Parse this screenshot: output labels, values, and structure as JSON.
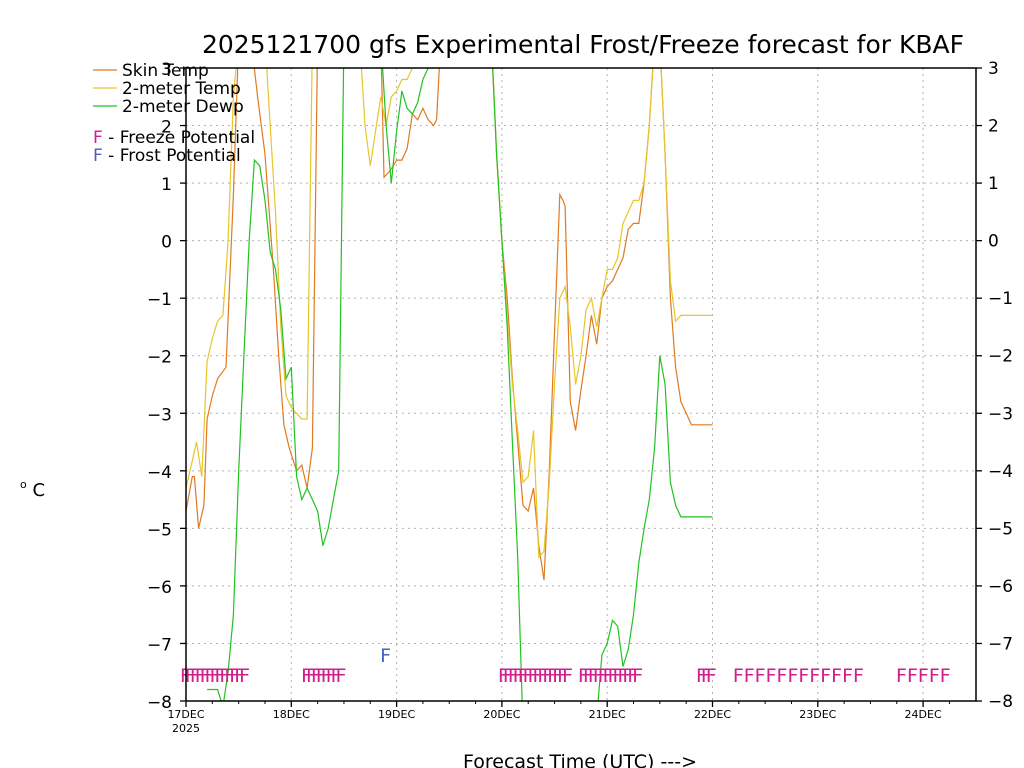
{
  "chart_data": {
    "type": "line",
    "title": "2025121700 gfs Experimental Frost/Freeze forecast for KBAF",
    "xlabel": "Forecast Time (UTC) --->",
    "ylabel": "°C",
    "ylabel_sup": "o",
    "ylabel_letter": "C",
    "ylim": [
      -8,
      3
    ],
    "xlim": [
      0,
      7.5
    ],
    "grid": true,
    "y_ticks": [
      3,
      2,
      1,
      0,
      -1,
      -2,
      -3,
      -4,
      -5,
      -6,
      -7,
      -8
    ],
    "y_tick_labels": [
      "3",
      "2",
      "1",
      "0",
      "−1",
      "−2",
      "−3",
      "−4",
      "−5",
      "−6",
      "−7",
      "−8"
    ],
    "y_tick_labels_right": [
      "3",
      "2",
      "1",
      "0",
      "−1",
      "−2",
      "−3",
      "−4",
      "−5",
      "−6",
      "−7",
      "−8"
    ],
    "x_ticks": [
      {
        "x": 0,
        "label": "17DEC",
        "sublabel": "2025"
      },
      {
        "x": 1,
        "label": "18DEC"
      },
      {
        "x": 2,
        "label": "19DEC"
      },
      {
        "x": 3,
        "label": "20DEC"
      },
      {
        "x": 4,
        "label": "21DEC"
      },
      {
        "x": 5,
        "label": "22DEC"
      },
      {
        "x": 6,
        "label": "23DEC"
      },
      {
        "x": 7,
        "label": "24DEC"
      }
    ],
    "legend": {
      "placement": "top-left",
      "series": [
        {
          "name": "Skin Temp",
          "color": "#e07a20"
        },
        {
          "name": "2-meter Temp",
          "color": "#e6c62a"
        },
        {
          "name": "2-meter Dewp",
          "color": "#22c222"
        }
      ],
      "markers": [
        {
          "symbol": "F",
          "text": " - Freeze Potential",
          "color": "#d21e8c"
        },
        {
          "symbol": "F",
          "text": " - Frost Potential",
          "color": "#4a5fbf"
        }
      ]
    },
    "series": [
      {
        "name": "Skin Temp",
        "color": "#e07a20",
        "x": [
          0,
          0.06,
          0.08,
          0.12,
          0.17,
          0.2,
          0.25,
          0.3,
          0.38,
          0.45,
          0.5,
          0.52,
          0.58,
          0.63,
          0.68,
          0.75,
          0.83,
          0.88,
          0.93,
          0.98,
          1.05,
          1.1,
          1.15,
          1.2,
          1.25,
          1.3,
          1.35,
          1.4,
          1.45,
          1.5,
          1.55,
          1.6,
          1.65,
          1.7,
          1.75,
          1.8,
          1.85,
          1.88,
          1.93,
          1.97,
          2.0,
          2.05,
          2.1,
          2.15,
          2.2,
          2.25,
          2.3,
          2.35,
          2.38,
          2.42,
          2.9,
          2.95,
          3.0,
          3.05,
          3.1,
          3.15,
          3.2,
          3.25,
          3.3,
          3.35,
          3.4,
          3.45,
          3.5,
          3.55,
          3.58,
          3.6,
          3.65,
          3.7,
          3.75,
          3.8,
          3.85,
          3.9,
          3.95,
          4.0,
          4.05,
          4.1,
          4.15,
          4.2,
          4.25,
          4.3,
          4.35,
          4.4,
          4.45,
          4.5,
          4.55,
          4.6,
          4.65,
          4.7,
          4.75,
          4.8,
          4.85,
          4.9,
          4.95,
          5.0
        ],
        "y": [
          -4.7,
          -4.1,
          -4.1,
          -5.0,
          -4.6,
          -3.1,
          -2.7,
          -2.4,
          -2.2,
          0.8,
          3.5,
          3.5,
          3.5,
          3.3,
          2.5,
          1.5,
          -0.5,
          -2.0,
          -3.2,
          -3.6,
          -4.0,
          -3.9,
          -4.3,
          -3.6,
          3.5,
          3.5,
          3.5,
          3.5,
          3.5,
          3.5,
          3.5,
          3.5,
          3.5,
          3.5,
          3.5,
          3.5,
          3.5,
          1.1,
          1.2,
          1.3,
          1.4,
          1.4,
          1.6,
          2.2,
          2.1,
          2.3,
          2.1,
          2.0,
          2.1,
          3.5,
          3.5,
          1.5,
          0.0,
          -1.0,
          -2.4,
          -3.5,
          -4.6,
          -4.7,
          -4.3,
          -5.3,
          -5.9,
          -4.0,
          -1.6,
          0.8,
          0.7,
          0.6,
          -2.8,
          -3.3,
          -2.6,
          -2.0,
          -1.3,
          -1.8,
          -1.0,
          -0.8,
          -0.7,
          -0.5,
          -0.3,
          0.2,
          0.3,
          0.3,
          1.0,
          2.0,
          3.5,
          3.5,
          1.5,
          -1.0,
          -2.2,
          -2.8,
          -3.0,
          -3.2,
          -3.2,
          -3.2,
          -3.2,
          -3.2
        ]
      },
      {
        "name": "2-meter Temp",
        "color": "#e6c62a",
        "x": [
          0,
          0.05,
          0.1,
          0.15,
          0.2,
          0.25,
          0.3,
          0.35,
          0.4,
          0.45,
          0.5,
          0.55,
          0.6,
          0.65,
          0.7,
          0.75,
          0.8,
          0.85,
          0.9,
          0.95,
          1.0,
          1.05,
          1.1,
          1.15,
          1.2,
          1.25,
          1.3,
          1.35,
          1.4,
          1.45,
          1.5,
          1.55,
          1.6,
          1.65,
          1.7,
          1.75,
          1.8,
          1.85,
          1.9,
          1.95,
          2.0,
          2.05,
          2.1,
          2.15,
          2.2,
          2.25,
          2.3,
          2.35,
          2.4,
          2.9,
          2.95,
          3.0,
          3.05,
          3.1,
          3.15,
          3.2,
          3.25,
          3.3,
          3.35,
          3.4,
          3.45,
          3.5,
          3.55,
          3.6,
          3.65,
          3.7,
          3.75,
          3.8,
          3.85,
          3.9,
          3.95,
          4.0,
          4.05,
          4.1,
          4.15,
          4.2,
          4.25,
          4.3,
          4.35,
          4.4,
          4.45,
          4.5,
          4.55,
          4.6,
          4.65,
          4.7,
          4.75,
          4.8,
          4.85,
          4.9,
          4.95,
          5.0
        ],
        "y": [
          -4.3,
          -3.9,
          -3.5,
          -4.1,
          -2.1,
          -1.7,
          -1.4,
          -1.3,
          0.0,
          2.5,
          3.5,
          3.5,
          3.5,
          3.5,
          3.5,
          3.5,
          2.0,
          0.5,
          -1.5,
          -2.7,
          -2.9,
          -3.0,
          -3.1,
          -3.1,
          3.5,
          3.5,
          3.5,
          3.5,
          3.5,
          3.5,
          3.5,
          3.5,
          3.5,
          3.5,
          2.0,
          1.3,
          1.9,
          2.5,
          2.0,
          2.5,
          2.6,
          2.8,
          2.8,
          3.0,
          3.0,
          3.5,
          3.5,
          3.5,
          3.5,
          3.5,
          1.5,
          0.0,
          -1.3,
          -2.5,
          -3.3,
          -4.2,
          -4.1,
          -3.3,
          -5.5,
          -5.4,
          -4.2,
          -2.5,
          -1.0,
          -0.8,
          -1.5,
          -2.5,
          -2.0,
          -1.2,
          -1.0,
          -1.5,
          -1.0,
          -0.5,
          -0.5,
          -0.3,
          0.3,
          0.5,
          0.7,
          0.7,
          1.0,
          2.0,
          3.5,
          3.5,
          1.5,
          -0.7,
          -1.4,
          -1.3,
          -1.3,
          -1.3,
          -1.3,
          -1.3,
          -1.3,
          -1.3
        ]
      },
      {
        "name": "2-meter Dewp",
        "color": "#22c222",
        "x": [
          0.2,
          0.3,
          0.35,
          0.4,
          0.45,
          0.5,
          0.55,
          0.6,
          0.65,
          0.7,
          0.75,
          0.8,
          0.85,
          0.9,
          0.95,
          1.0,
          1.05,
          1.1,
          1.15,
          1.2,
          1.25,
          1.3,
          1.35,
          1.4,
          1.45,
          1.5,
          1.55,
          1.6,
          1.65,
          1.7,
          1.75,
          1.8,
          1.85,
          1.9,
          1.95,
          2.0,
          2.05,
          2.1,
          2.15,
          2.2,
          2.25,
          2.3,
          2.35,
          2.4,
          2.9,
          2.95,
          3.0,
          3.05,
          3.1,
          3.15,
          3.2,
          3.3,
          3.5,
          3.8,
          3.9,
          3.95,
          4.0,
          4.05,
          4.1,
          4.15,
          4.2,
          4.25,
          4.3,
          4.35,
          4.4,
          4.45,
          4.5,
          4.55,
          4.6,
          4.65,
          4.7,
          4.75,
          4.8,
          4.85,
          4.9,
          4.95,
          5.0
        ],
        "y": [
          -7.8,
          -7.8,
          -8.1,
          -7.5,
          -6.5,
          -4.0,
          -2.0,
          0.0,
          1.4,
          1.3,
          0.7,
          -0.2,
          -0.5,
          -1.2,
          -2.4,
          -2.2,
          -4.1,
          -4.5,
          -4.3,
          -4.5,
          -4.7,
          -5.3,
          -5.0,
          -4.5,
          -4.0,
          3.5,
          3.5,
          3.5,
          3.5,
          3.5,
          3.5,
          3.5,
          3.5,
          2.0,
          1.0,
          1.9,
          2.6,
          2.3,
          2.2,
          2.4,
          2.8,
          3.0,
          3.0,
          3.5,
          3.5,
          1.5,
          0.0,
          -1.5,
          -3.5,
          -5.5,
          -8.5,
          -8.5,
          -8.5,
          -8.5,
          -8.3,
          -7.2,
          -7.0,
          -6.6,
          -6.7,
          -7.4,
          -7.1,
          -6.5,
          -5.6,
          -5.0,
          -4.5,
          -3.6,
          -2.0,
          -2.5,
          -4.2,
          -4.6,
          -4.8,
          -4.8,
          -4.8,
          -4.8,
          -4.8,
          -4.8,
          -4.8
        ]
      }
    ],
    "freeze_markers": [
      {
        "x": 0.0,
        "y": -7.55,
        "text": "FFFFFFFFFFFFF",
        "tight": true
      },
      {
        "x": 1.15,
        "y": -7.55,
        "text": "FFFFFFFF",
        "tight": true
      },
      {
        "x": 3.02,
        "y": -7.55,
        "text": "FFFFFFFFFFFFFF",
        "tight": true
      },
      {
        "x": 3.78,
        "y": -7.55,
        "text": "FFFFFFFFFFFF",
        "tight": true
      },
      {
        "x": 4.9,
        "y": -7.55,
        "text": "FFF",
        "tight": true
      },
      {
        "x": 5.25,
        "y": -7.55,
        "text": "FFFFFFFFFFFF",
        "tight": false
      },
      {
        "x": 6.8,
        "y": -7.55,
        "text": "FFFFF",
        "tight": false
      }
    ],
    "frost_markers": [
      {
        "x": 1.9,
        "y": -7.2,
        "text": "F"
      }
    ]
  }
}
